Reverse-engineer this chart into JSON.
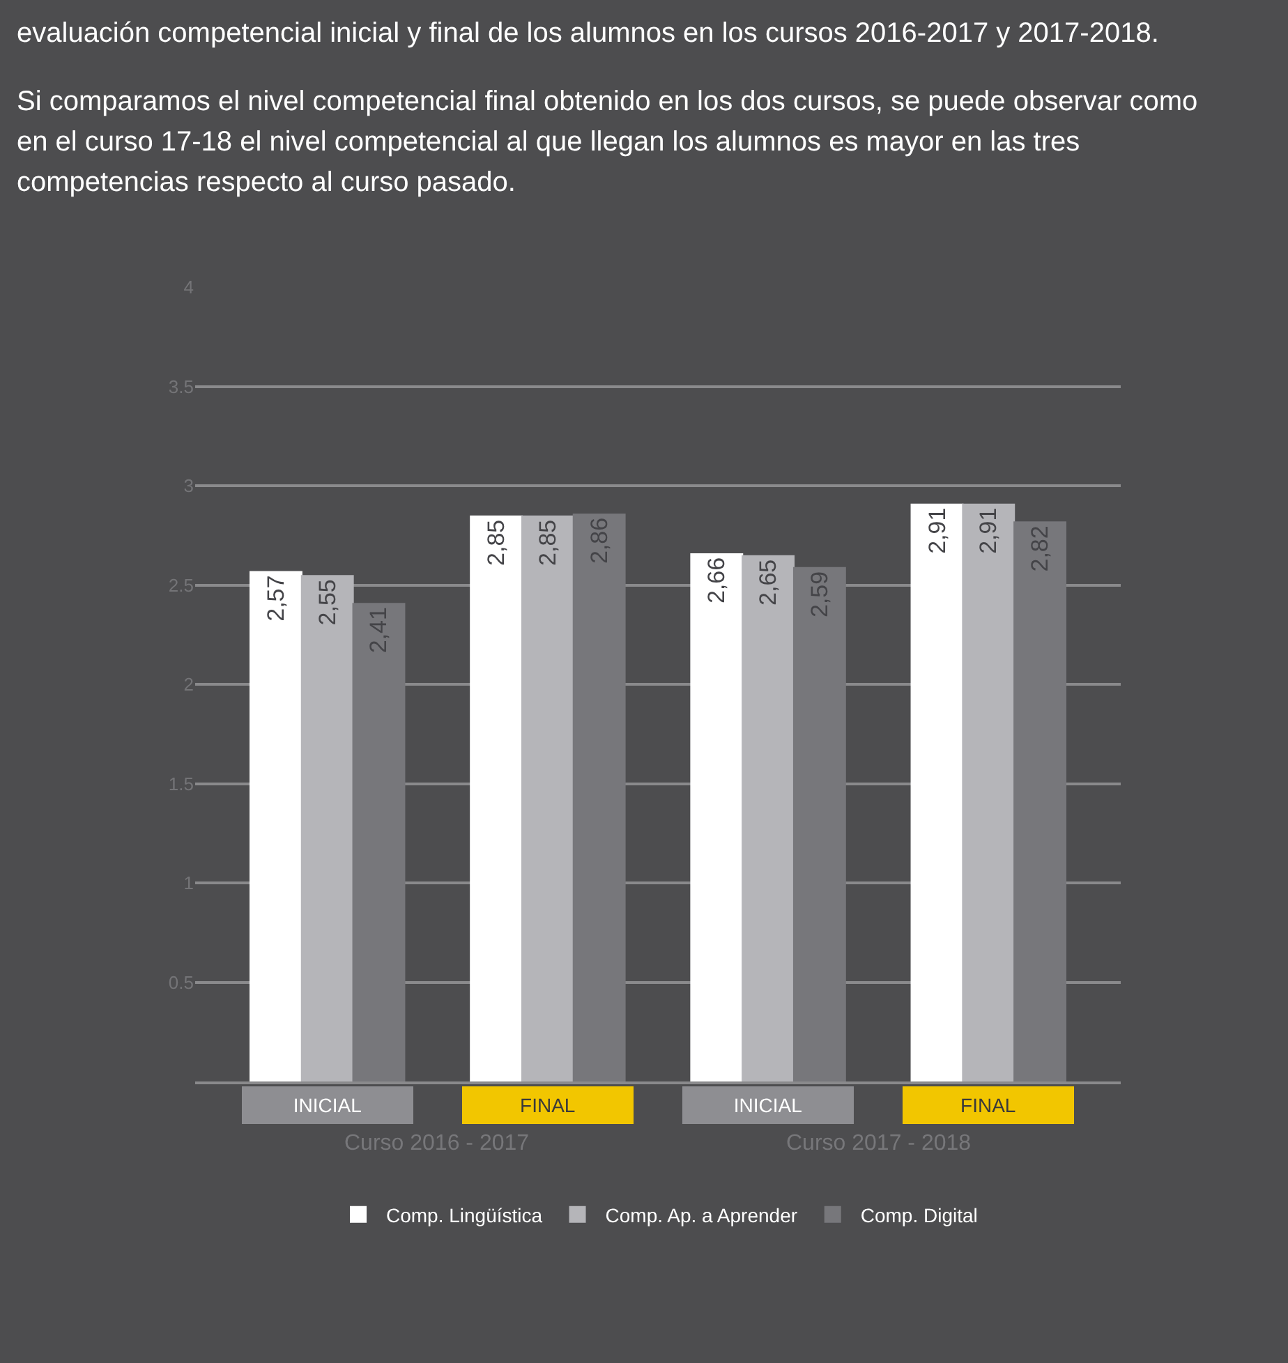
{
  "chart_data": {
    "type": "bar",
    "title": "evaluación competencial inicial y final de los alumnos en los cursos 2016-2017 y 2017-2018.",
    "subtitle": "Si comparamos el nivel competencial final obtenido en los dos cursos, se puede observar como en el curso 17-18 el nivel competencial al que llegan los alumnos es mayor en las tres competencias respecto al curso pasado.",
    "categories": [
      "INICIAL",
      "FINAL",
      "INICIAL",
      "FINAL"
    ],
    "annotations": [
      "Curso 2016 - 2017",
      "Curso 2017 - 2018"
    ],
    "series": [
      {
        "name": "Comp. Lingüística",
        "color": "#ffffff",
        "values": [
          2.57,
          2.85,
          2.66,
          2.91
        ],
        "value_labels": [
          "2,57",
          "2,85",
          "2,66",
          "2,91"
        ]
      },
      {
        "name": "Comp. Ap. a Aprender",
        "color": "#b5b5b9",
        "values": [
          2.55,
          2.85,
          2.65,
          2.91
        ],
        "value_labels": [
          "2,55",
          "2,85",
          "2,65",
          "2,91"
        ]
      },
      {
        "name": "Comp. Digital",
        "color": "#77777b",
        "values": [
          2.41,
          2.86,
          2.59,
          2.82
        ],
        "value_labels": [
          "2,41",
          "2,86",
          "2,59",
          "2,82"
        ]
      }
    ],
    "ylim": [
      0,
      4
    ],
    "yticks": [
      0.5,
      1,
      1.5,
      2,
      2.5,
      3,
      3.5,
      4
    ],
    "grid": "y",
    "legend": "bottom"
  }
}
